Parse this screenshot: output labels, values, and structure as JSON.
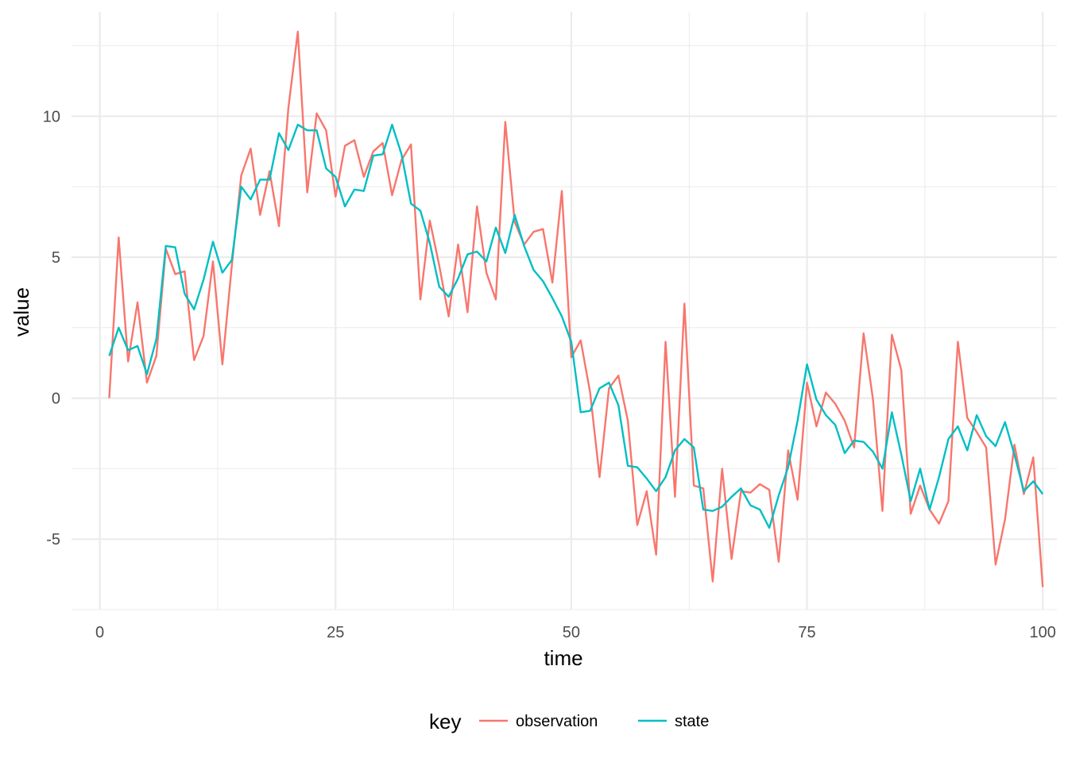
{
  "chart_data": {
    "type": "line",
    "title": "",
    "xlabel": "time",
    "ylabel": "value",
    "xlim": [
      -3,
      101.5
    ],
    "ylim": [
      -7.5,
      13.7
    ],
    "x_ticks": [
      0,
      25,
      50,
      75,
      100
    ],
    "x_tick_labels": [
      "0",
      "25",
      "50",
      "75",
      "100"
    ],
    "y_ticks": [
      -5,
      0,
      5,
      10
    ],
    "y_tick_labels": [
      "-5",
      "0",
      "5",
      "10"
    ],
    "grid": true,
    "legend": {
      "title": "key",
      "placement": "bottom",
      "entries": [
        "observation",
        "state"
      ]
    },
    "x": [
      1,
      2,
      3,
      4,
      5,
      6,
      7,
      8,
      9,
      10,
      11,
      12,
      13,
      14,
      15,
      16,
      17,
      18,
      19,
      20,
      21,
      22,
      23,
      24,
      25,
      26,
      27,
      28,
      29,
      30,
      31,
      32,
      33,
      34,
      35,
      36,
      37,
      38,
      39,
      40,
      41,
      42,
      43,
      44,
      45,
      46,
      47,
      48,
      49,
      50,
      51,
      52,
      53,
      54,
      55,
      56,
      57,
      58,
      59,
      60,
      61,
      62,
      63,
      64,
      65,
      66,
      67,
      68,
      69,
      70,
      71,
      72,
      73,
      74,
      75,
      76,
      77,
      78,
      79,
      80,
      81,
      82,
      83,
      84,
      85,
      86,
      87,
      88,
      89,
      90,
      91,
      92,
      93,
      94,
      95,
      96,
      97,
      98,
      99,
      100
    ],
    "series": [
      {
        "name": "observation",
        "color": "#F8766D",
        "values": [
          0.0,
          5.7,
          1.3,
          3.4,
          0.55,
          1.5,
          5.3,
          4.4,
          4.5,
          1.35,
          2.2,
          4.85,
          1.2,
          4.7,
          7.9,
          8.85,
          6.5,
          8.05,
          6.1,
          10.3,
          13.0,
          7.3,
          10.1,
          9.5,
          7.15,
          8.95,
          9.15,
          7.85,
          8.75,
          9.05,
          7.2,
          8.45,
          9.0,
          3.5,
          6.3,
          4.7,
          2.9,
          5.45,
          3.05,
          6.8,
          4.45,
          3.5,
          9.8,
          6.25,
          5.45,
          5.9,
          6.0,
          4.1,
          7.35,
          1.45,
          2.05,
          0.2,
          -2.8,
          0.35,
          0.8,
          -0.8,
          -4.5,
          -3.3,
          -5.55,
          2.0,
          -3.5,
          3.35,
          -3.1,
          -3.2,
          -6.5,
          -2.5,
          -5.7,
          -3.3,
          -3.35,
          -3.05,
          -3.25,
          -5.8,
          -1.85,
          -3.6,
          0.55,
          -1.0,
          0.2,
          -0.2,
          -0.8,
          -1.75,
          2.3,
          -0.05,
          -4.0,
          2.25,
          1.0,
          -4.1,
          -3.1,
          -3.95,
          -4.45,
          -3.65,
          2.0,
          -0.7,
          -1.2,
          -1.75,
          -5.9,
          -4.3,
          -1.65,
          -3.4,
          -2.1,
          -6.7
        ]
      },
      {
        "name": "state",
        "color": "#00BFC4",
        "values": [
          1.5,
          2.5,
          1.7,
          1.85,
          0.85,
          2.1,
          5.4,
          5.35,
          3.7,
          3.15,
          4.2,
          5.55,
          4.45,
          4.9,
          7.5,
          7.05,
          7.75,
          7.75,
          9.4,
          8.8,
          9.7,
          9.5,
          9.5,
          8.15,
          7.85,
          6.8,
          7.4,
          7.35,
          8.6,
          8.65,
          9.7,
          8.65,
          6.9,
          6.65,
          5.5,
          3.95,
          3.6,
          4.25,
          5.1,
          5.2,
          4.85,
          6.05,
          5.15,
          6.5,
          5.4,
          4.55,
          4.15,
          3.55,
          2.9,
          2.0,
          -0.5,
          -0.45,
          0.35,
          0.55,
          -0.25,
          -2.4,
          -2.45,
          -2.85,
          -3.3,
          -2.8,
          -1.85,
          -1.45,
          -1.75,
          -3.95,
          -4.0,
          -3.85,
          -3.5,
          -3.2,
          -3.8,
          -3.95,
          -4.6,
          -3.45,
          -2.45,
          -0.8,
          1.2,
          -0.05,
          -0.6,
          -0.95,
          -1.95,
          -1.5,
          -1.55,
          -1.9,
          -2.5,
          -0.5,
          -2.0,
          -3.65,
          -2.5,
          -3.95,
          -2.8,
          -1.45,
          -1.0,
          -1.85,
          -0.6,
          -1.35,
          -1.7,
          -0.85,
          -2.0,
          -3.3,
          -2.95,
          -3.4
        ]
      }
    ]
  }
}
